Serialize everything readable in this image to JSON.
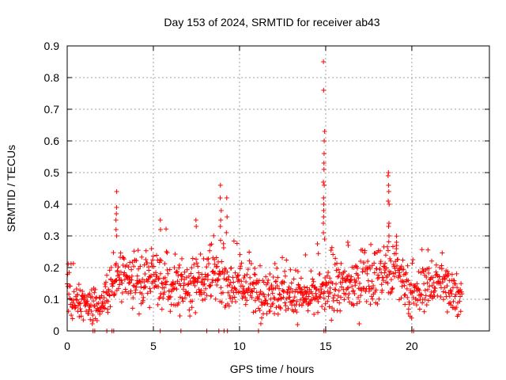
{
  "chart_data": {
    "type": "scatter",
    "title": "Day 153 of 2024, SRMTID for receiver ab43",
    "xlabel": "GPS time / hours",
    "ylabel": "SRMTID / TECUs",
    "xlim": [
      0,
      24.5
    ],
    "ylim": [
      0,
      0.9
    ],
    "xticks": [
      0,
      5,
      10,
      15,
      20
    ],
    "yticks": [
      0,
      0.1,
      0.2,
      0.3,
      0.4,
      0.5,
      0.6,
      0.7,
      0.8,
      0.9
    ],
    "xtick_labels": [
      "0",
      "5",
      "10",
      "15",
      "20"
    ],
    "ytick_labels": [
      "0",
      "0.1",
      "0.2",
      "0.3",
      "0.4",
      "0.5",
      "0.6",
      "0.7",
      "0.8",
      "0.9"
    ],
    "grid": true,
    "marker": "+",
    "marker_color": "#ff0000",
    "baseline_envelope": [
      [
        0.0,
        0.11
      ],
      [
        0.5,
        0.09
      ],
      [
        1.0,
        0.09
      ],
      [
        1.5,
        0.08
      ],
      [
        2.0,
        0.09
      ],
      [
        2.5,
        0.13
      ],
      [
        3.0,
        0.17
      ],
      [
        3.5,
        0.15
      ],
      [
        4.0,
        0.15
      ],
      [
        4.5,
        0.17
      ],
      [
        5.0,
        0.16
      ],
      [
        5.5,
        0.15
      ],
      [
        6.0,
        0.13
      ],
      [
        6.5,
        0.15
      ],
      [
        7.0,
        0.14
      ],
      [
        7.5,
        0.17
      ],
      [
        8.0,
        0.16
      ],
      [
        8.5,
        0.18
      ],
      [
        9.0,
        0.17
      ],
      [
        9.5,
        0.15
      ],
      [
        10.0,
        0.15
      ],
      [
        10.5,
        0.14
      ],
      [
        11.0,
        0.12
      ],
      [
        11.5,
        0.12
      ],
      [
        12.0,
        0.13
      ],
      [
        12.5,
        0.12
      ],
      [
        13.0,
        0.11
      ],
      [
        13.5,
        0.1
      ],
      [
        14.0,
        0.1
      ],
      [
        14.5,
        0.12
      ],
      [
        15.0,
        0.12
      ],
      [
        15.5,
        0.13
      ],
      [
        16.0,
        0.14
      ],
      [
        16.5,
        0.14
      ],
      [
        17.0,
        0.15
      ],
      [
        17.5,
        0.17
      ],
      [
        18.0,
        0.18
      ],
      [
        18.5,
        0.19
      ],
      [
        19.0,
        0.19
      ],
      [
        19.5,
        0.15
      ],
      [
        20.0,
        0.1
      ],
      [
        20.5,
        0.13
      ],
      [
        21.0,
        0.15
      ],
      [
        21.5,
        0.16
      ],
      [
        22.0,
        0.14
      ],
      [
        22.5,
        0.13
      ],
      [
        22.9,
        0.12
      ]
    ],
    "spikes": [
      {
        "x": 2.85,
        "values": [
          0.44,
          0.39,
          0.37,
          0.35,
          0.32,
          0.3
        ]
      },
      {
        "x": 8.9,
        "values": [
          0.46,
          0.42,
          0.38,
          0.35,
          0.33
        ]
      },
      {
        "x": 9.25,
        "values": [
          0.42,
          0.36
        ]
      },
      {
        "x": 7.45,
        "values": [
          0.35,
          0.33
        ]
      },
      {
        "x": 5.4,
        "values": [
          0.35,
          0.32
        ]
      },
      {
        "x": 13.8,
        "values": [
          0.24
        ]
      },
      {
        "x": 14.9,
        "values": [
          0.85,
          0.76,
          0.63,
          0.6,
          0.56,
          0.53,
          0.51,
          0.47,
          0.46,
          0.42,
          0.4,
          0.38,
          0.36,
          0.34,
          0.31,
          0.29
        ]
      },
      {
        "x": 16.3,
        "values": [
          0.28,
          0.27
        ]
      },
      {
        "x": 18.65,
        "values": [
          0.5,
          0.49,
          0.46,
          0.44,
          0.41,
          0.4,
          0.34,
          0.33,
          0.3
        ]
      },
      {
        "x": 19.1,
        "values": [
          0.28,
          0.27
        ]
      }
    ],
    "zero_points_x": [
      1.5,
      1.6,
      2.3,
      2.6,
      2.7,
      5.4,
      6.6,
      8.1,
      8.8,
      9.1,
      9.3,
      11.1,
      14.9,
      15.0,
      20.0,
      20.1
    ]
  }
}
